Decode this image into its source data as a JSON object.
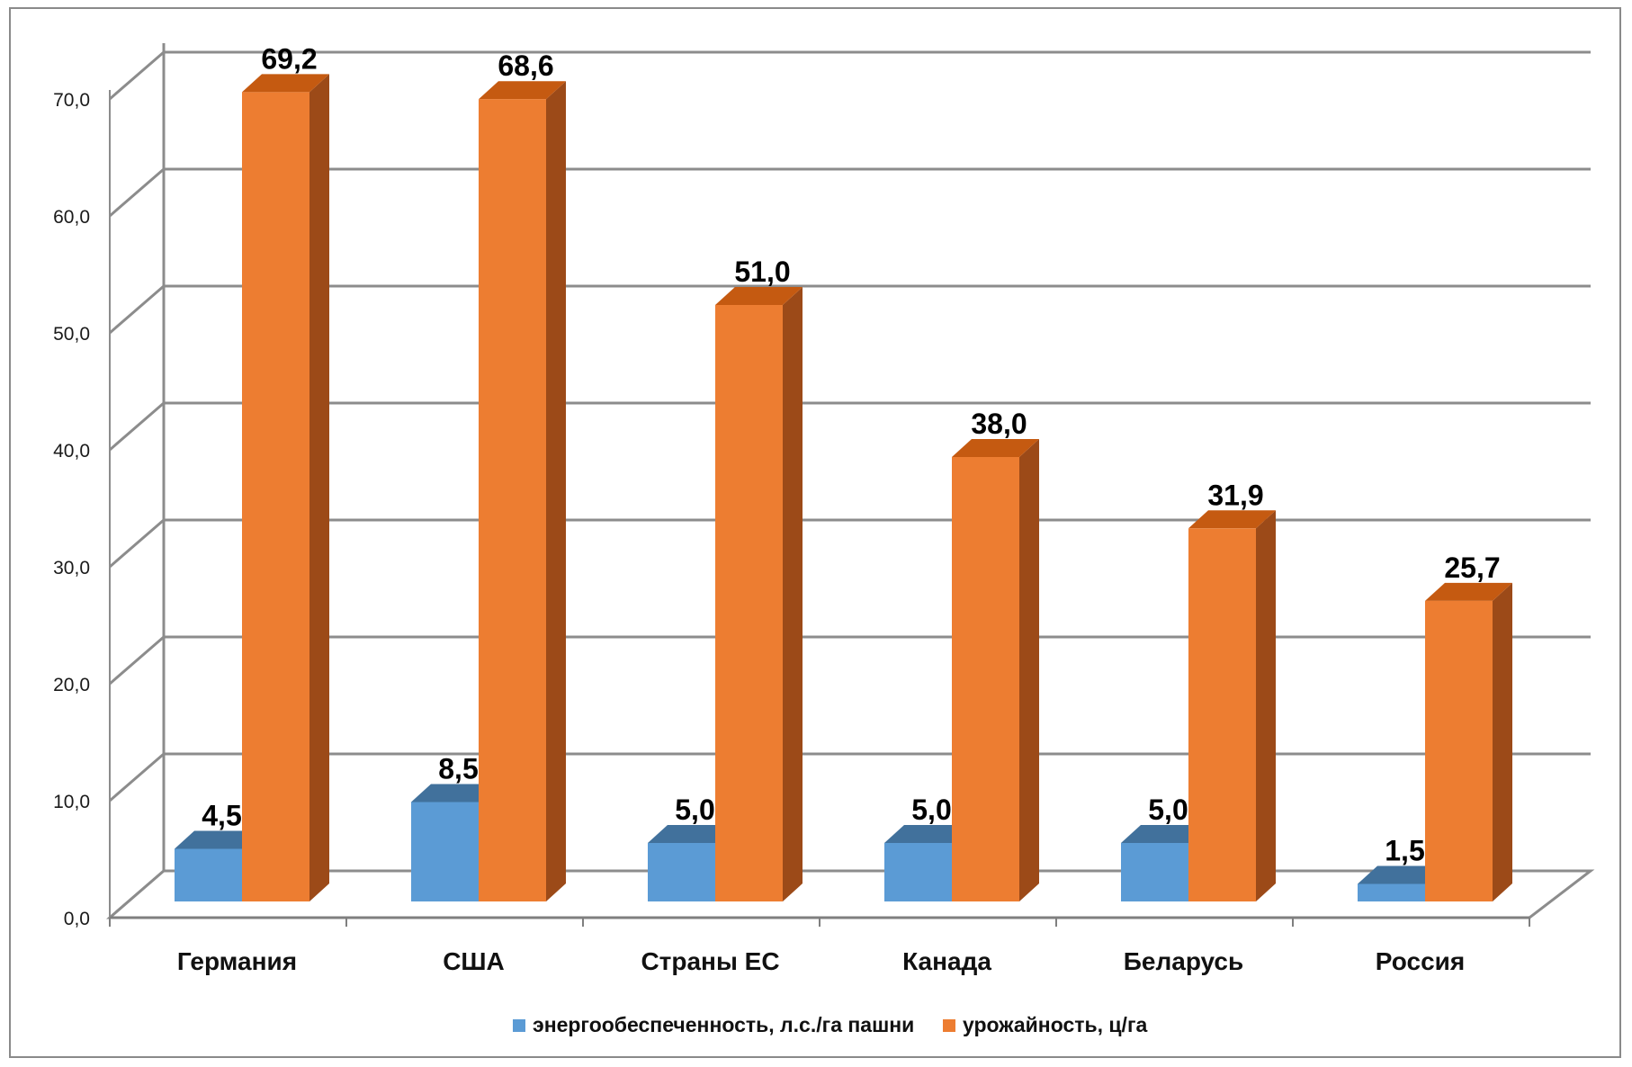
{
  "chart_data": {
    "type": "bar",
    "categories": [
      "Германия",
      "США",
      "Страны ЕС",
      "Канада",
      "Беларусь",
      "Россия"
    ],
    "series": [
      {
        "name": "энергообеспеченность,  л.с./га пашни",
        "values": [
          4.5,
          8.5,
          5.0,
          5.0,
          5.0,
          1.5
        ],
        "labels": [
          "4,5",
          "8,5",
          "5,0",
          "5,0",
          "5,0",
          "1,5"
        ],
        "color": "#5b9bd5",
        "top_color": "#41719c",
        "side_color": "#3d6b96"
      },
      {
        "name": "урожайность,  ц/га",
        "values": [
          69.2,
          68.6,
          51.0,
          38.0,
          31.9,
          25.7
        ],
        "labels": [
          "69,2",
          "68,6",
          "51,0",
          "38,0",
          "31,9",
          "25,7"
        ],
        "color": "#ed7d31",
        "top_color": "#c55a11",
        "side_color": "#9c4a18"
      }
    ],
    "y_ticks": [
      "0,0",
      "10,0",
      "20,0",
      "30,0",
      "40,0",
      "50,0",
      "60,0",
      "70,0"
    ],
    "ylim": [
      0,
      70
    ],
    "grid": true,
    "legend_position": "bottom",
    "title": "",
    "xlabel": "",
    "ylabel": ""
  }
}
